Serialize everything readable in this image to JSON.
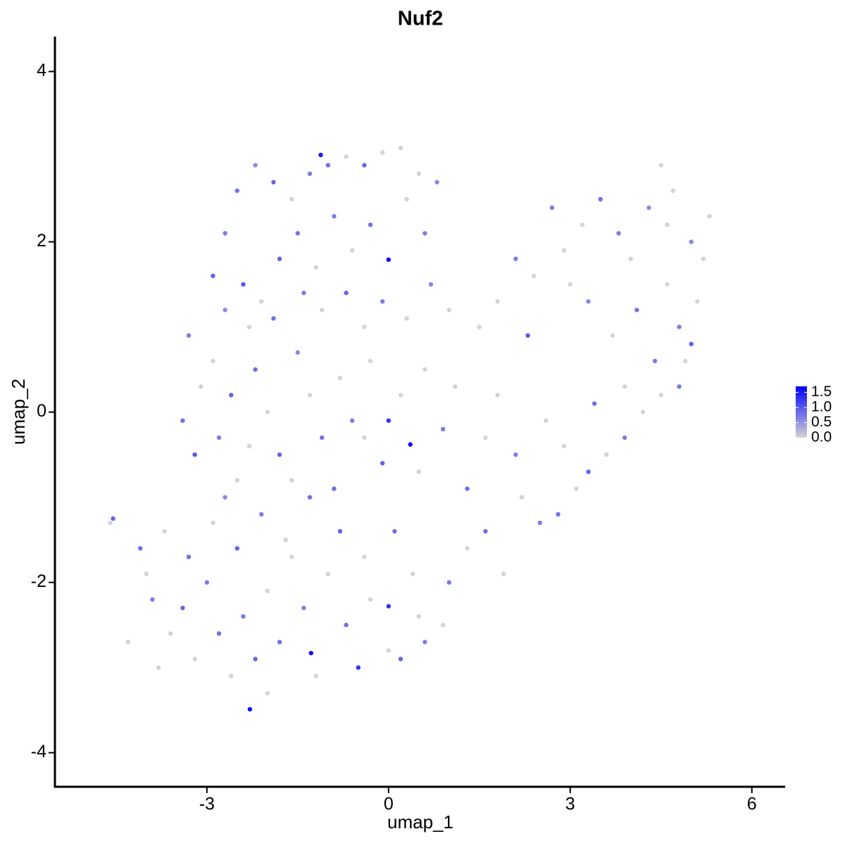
{
  "chart_data": {
    "type": "scatter",
    "title": "Nuf2",
    "x_label": "umap_1",
    "y_label": "umap_2",
    "xlim": [
      -5.51,
      6.55
    ],
    "ylim": [
      -4.4,
      4.41
    ],
    "xticks": [
      -3,
      0,
      3,
      6
    ],
    "yticks": [
      -4,
      -2,
      0,
      2,
      4
    ],
    "color_low": "#d3d3d3",
    "color_high": "#0000ff",
    "color_lim": [
      0,
      1.7
    ],
    "color_ticks": [
      {
        "value": 0,
        "label": "0.0"
      },
      {
        "value": 0.5,
        "label": "0.5"
      },
      {
        "value": 1,
        "label": "1.0"
      },
      {
        "value": 1.5,
        "label": "1.5"
      }
    ],
    "x": [
      -2.9,
      -2.7,
      -2.5,
      -2.2,
      -1.9,
      -1.6,
      -1.3,
      -1.0,
      -0.7,
      -0.4,
      -0.1,
      0.2,
      0.5,
      0.8,
      -2.4,
      -2.1,
      -1.8,
      -1.5,
      -1.2,
      -0.9,
      -0.6,
      -0.3,
      0.0,
      0.3,
      0.6,
      -2.7,
      -2.3,
      -1.9,
      -1.4,
      -1.1,
      -0.7,
      -0.4,
      -0.1,
      0.3,
      0.7,
      1.0,
      -1.12,
      -3.3,
      -3.1,
      -3.4,
      -3.2,
      -2.9,
      -2.6,
      -2.8,
      -2.5,
      -2.2,
      -2.0,
      -1.8,
      -1.5,
      -1.3,
      -1.1,
      -0.8,
      -0.6,
      -0.3,
      -0.1,
      0.2,
      0.36,
      0.6,
      0.9,
      -2.7,
      -2.3,
      -1.6,
      -0.9,
      -0.4,
      0.0,
      0.5,
      1.1,
      -4.6,
      -4.55,
      -4.1,
      -4.0,
      -3.9,
      -3.6,
      -3.4,
      -3.2,
      -3.0,
      -2.8,
      -2.6,
      -2.4,
      -2.2,
      -2.0,
      -1.8,
      -1.6,
      -1.4,
      -1.2,
      -1.28,
      -2.29,
      -2.0,
      -3.7,
      -3.3,
      -2.9,
      -2.5,
      -2.1,
      -1.7,
      -1.3,
      -1.0,
      -0.7,
      -0.5,
      -0.3,
      0.0,
      0.0,
      0.2,
      0.5,
      0.6,
      0.9,
      -0.8,
      -0.4,
      0.1,
      0.4,
      -4.3,
      -3.8,
      1.0,
      1.3,
      1.6,
      1.9,
      2.2,
      2.5,
      2.8,
      3.1,
      3.3,
      3.6,
      3.9,
      4.2,
      4.5,
      4.8,
      5.0,
      5.1,
      5.2,
      5.3,
      5.0,
      4.7,
      4.5,
      4.3,
      4.0,
      3.8,
      3.5,
      3.2,
      2.9,
      2.7,
      2.4,
      2.1,
      1.8,
      1.5,
      2.3,
      3.0,
      3.3,
      3.7,
      4.1,
      4.6,
      4.9,
      4.4,
      3.9,
      3.4,
      2.9,
      2.6,
      2.1,
      1.6,
      1.3,
      1.8,
      4.8,
      4.6
    ],
    "y": [
      1.6,
      2.1,
      2.6,
      2.9,
      2.7,
      2.5,
      2.8,
      2.9,
      3.0,
      2.9,
      3.05,
      3.1,
      2.8,
      2.7,
      1.5,
      1.3,
      1.8,
      2.1,
      1.7,
      2.3,
      1.9,
      2.2,
      1.79,
      2.5,
      2.1,
      1.2,
      1.0,
      1.1,
      1.4,
      1.2,
      1.4,
      1.0,
      1.3,
      1.1,
      1.5,
      1.2,
      3.02,
      0.9,
      0.3,
      -0.1,
      -0.5,
      0.6,
      0.2,
      -0.3,
      -0.8,
      0.5,
      0.0,
      -0.5,
      0.7,
      0.2,
      -0.3,
      0.4,
      -0.1,
      0.6,
      -0.6,
      0.2,
      -0.38,
      0.5,
      -0.2,
      -1.0,
      -0.4,
      -0.8,
      -0.9,
      -0.3,
      -0.1,
      -0.7,
      0.3,
      -1.3,
      -1.25,
      -1.6,
      -1.9,
      -2.2,
      -2.6,
      -2.3,
      -2.9,
      -2.0,
      -2.6,
      -3.1,
      -2.4,
      -2.9,
      -2.1,
      -2.7,
      -1.7,
      -2.3,
      -3.1,
      -2.83,
      -3.49,
      -3.3,
      -1.4,
      -1.7,
      -1.3,
      -1.6,
      -1.2,
      -1.5,
      -1.0,
      -1.9,
      -2.5,
      -3.0,
      -2.2,
      -2.8,
      -2.28,
      -2.9,
      -2.4,
      -2.7,
      -2.5,
      -1.4,
      -1.7,
      -1.4,
      -1.9,
      -2.7,
      -3.0,
      -2.0,
      -1.6,
      -1.4,
      -1.9,
      -1.0,
      -1.3,
      -1.2,
      -0.9,
      -0.7,
      -0.5,
      -0.3,
      0.0,
      0.2,
      0.3,
      0.8,
      1.3,
      1.8,
      2.3,
      2.0,
      2.6,
      2.9,
      2.4,
      1.8,
      2.1,
      2.5,
      2.2,
      1.9,
      2.4,
      1.6,
      1.8,
      1.3,
      1.0,
      0.9,
      1.5,
      1.3,
      0.9,
      1.2,
      1.5,
      0.6,
      0.6,
      0.3,
      0.1,
      -0.4,
      -0.1,
      -0.5,
      -0.3,
      -0.9,
      0.2,
      1.0,
      2.2
    ],
    "values": [
      0.9,
      0.7,
      0.8,
      0.6,
      0.9,
      0,
      0.7,
      0.8,
      0,
      0.9,
      0,
      0,
      0,
      0.6,
      1.0,
      0,
      0.9,
      0.8,
      0,
      0.7,
      0,
      0.8,
      1.7,
      0,
      0.7,
      0.6,
      0,
      0.8,
      0.7,
      0,
      0.9,
      0,
      0.7,
      0,
      0.6,
      0,
      1.5,
      0.7,
      0,
      0.8,
      1.0,
      0,
      0.9,
      0.7,
      0,
      0.8,
      0,
      0.9,
      0.6,
      0,
      0.8,
      0,
      0.7,
      0,
      0.9,
      0,
      1.6,
      0,
      0.7,
      0.6,
      0,
      0,
      0.8,
      0,
      1.3,
      0,
      0,
      0,
      0.9,
      0.8,
      0,
      0.7,
      0,
      0.9,
      0,
      0.7,
      0.8,
      0,
      0.7,
      0.9,
      0,
      0.8,
      0,
      0.7,
      0,
      1.6,
      1.6,
      0,
      0,
      0.8,
      0,
      0.9,
      0.7,
      0,
      0.8,
      0,
      0.8,
      1.3,
      0,
      0,
      1.3,
      0.9,
      0,
      0.7,
      0,
      0.9,
      0,
      0.8,
      0,
      0,
      0,
      0.7,
      0,
      0.8,
      0,
      0,
      0.7,
      0.8,
      0,
      0.9,
      0,
      0.7,
      0,
      0,
      0.7,
      0.9,
      0,
      0,
      0,
      0.6,
      0,
      0,
      0.6,
      0,
      0.7,
      0.8,
      0,
      0,
      0.7,
      0,
      0.7,
      0,
      0,
      1.0,
      0,
      0.6,
      0,
      0.8,
      0,
      0,
      0.7,
      0,
      0.8,
      0,
      0,
      0.7,
      0,
      0.8,
      0,
      0.7,
      0
    ]
  }
}
